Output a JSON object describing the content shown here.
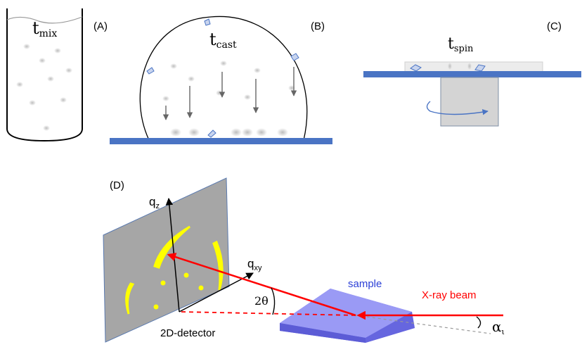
{
  "panels": {
    "a": {
      "tag": "(A)",
      "time_main": "t",
      "time_sub": "mix"
    },
    "b": {
      "tag": "(B)",
      "time_main": "t",
      "time_sub": "cast"
    },
    "c": {
      "tag": "(C)",
      "time_main": "t",
      "time_sub": "spin"
    },
    "d": {
      "tag": "(D)",
      "qz_main": "q",
      "qz_sub": "z",
      "qxy_main": "q",
      "qxy_sub": "xy",
      "two_theta": "2θ",
      "sample": "sample",
      "xray": "X-ray beam",
      "alpha": "α",
      "alpha_sub": "ι",
      "detector": "2D-detector"
    }
  },
  "colors": {
    "substrate": "#4a74c4",
    "beam": "#ff0000",
    "reflection": "#ffff00",
    "detector": "#a6a6a6",
    "sample": "#8080ff",
    "block": "#d4d4d4"
  }
}
